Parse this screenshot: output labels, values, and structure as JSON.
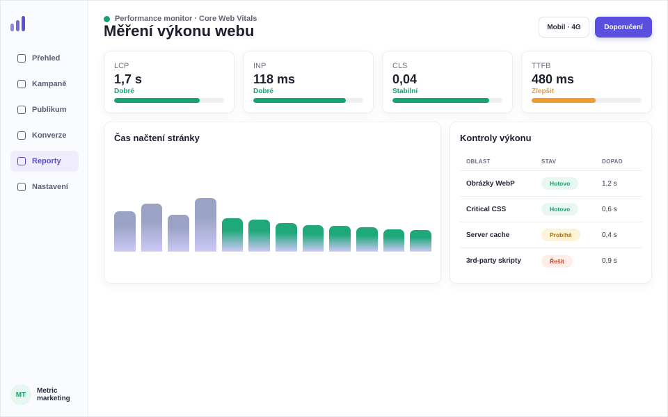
{
  "app": {
    "initials": "MT",
    "name": "Metric marketing"
  },
  "sidebar": {
    "items": [
      {
        "label": "Přehled",
        "active": false
      },
      {
        "label": "Kampaně",
        "active": false
      },
      {
        "label": "Publikum",
        "active": false
      },
      {
        "label": "Konverze",
        "active": false
      },
      {
        "label": "Reporty",
        "active": true
      },
      {
        "label": "Nastavení",
        "active": false
      }
    ]
  },
  "header": {
    "subtitle": "Performance monitor · Core Web Vitals",
    "title": "Měření výkonu webu",
    "device_button": "Mobil · 4G",
    "primary_button": "Doporučení"
  },
  "metrics": [
    {
      "label": "LCP",
      "value": "1,7 s",
      "status": "Dobré",
      "progress": 0.78,
      "color": "#16a36f"
    },
    {
      "label": "INP",
      "value": "118 ms",
      "status": "Dobré",
      "progress": 0.84,
      "color": "#16a36f"
    },
    {
      "label": "CLS",
      "value": "0,04",
      "status": "Stabilní",
      "progress": 0.88,
      "color": "#16a36f"
    },
    {
      "label": "TTFB",
      "value": "480 ms",
      "status": "Zlepšit",
      "progress": 0.58,
      "color": "#f29a2e"
    }
  ],
  "chart": {
    "title": "Čas načtení stránky"
  },
  "chart_data": {
    "type": "bar",
    "title": "Čas načtení stránky",
    "values": [
      58,
      69,
      53,
      77,
      48,
      46,
      41,
      38,
      37,
      35,
      32,
      31
    ],
    "ylim": [
      0,
      146
    ],
    "grid": false,
    "series_colors": [
      "#9aa3c4",
      "#9aa3c4",
      "#9aa3c4",
      "#9aa3c4",
      "#1fa97a",
      "#1fa97a",
      "#1fa97a",
      "#1fa97a",
      "#1fa97a",
      "#1fa97a",
      "#1fa97a",
      "#1fa97a"
    ]
  },
  "table": {
    "title": "Kontroly výkonu",
    "headers": [
      "OBLAST",
      "STAV",
      "DOPAD"
    ],
    "rows": [
      {
        "area": "Obrázky WebP",
        "status": "Hotovo",
        "kind": "ok",
        "impact": "1,2 s"
      },
      {
        "area": "Critical CSS",
        "status": "Hotovo",
        "kind": "ok",
        "impact": "0,6 s"
      },
      {
        "area": "Server cache",
        "status": "Probíhá",
        "kind": "prog",
        "impact": "0,4 s"
      },
      {
        "area": "3rd-party skripty",
        "status": "Řešit",
        "kind": "fix",
        "impact": "0,9 s"
      }
    ]
  }
}
